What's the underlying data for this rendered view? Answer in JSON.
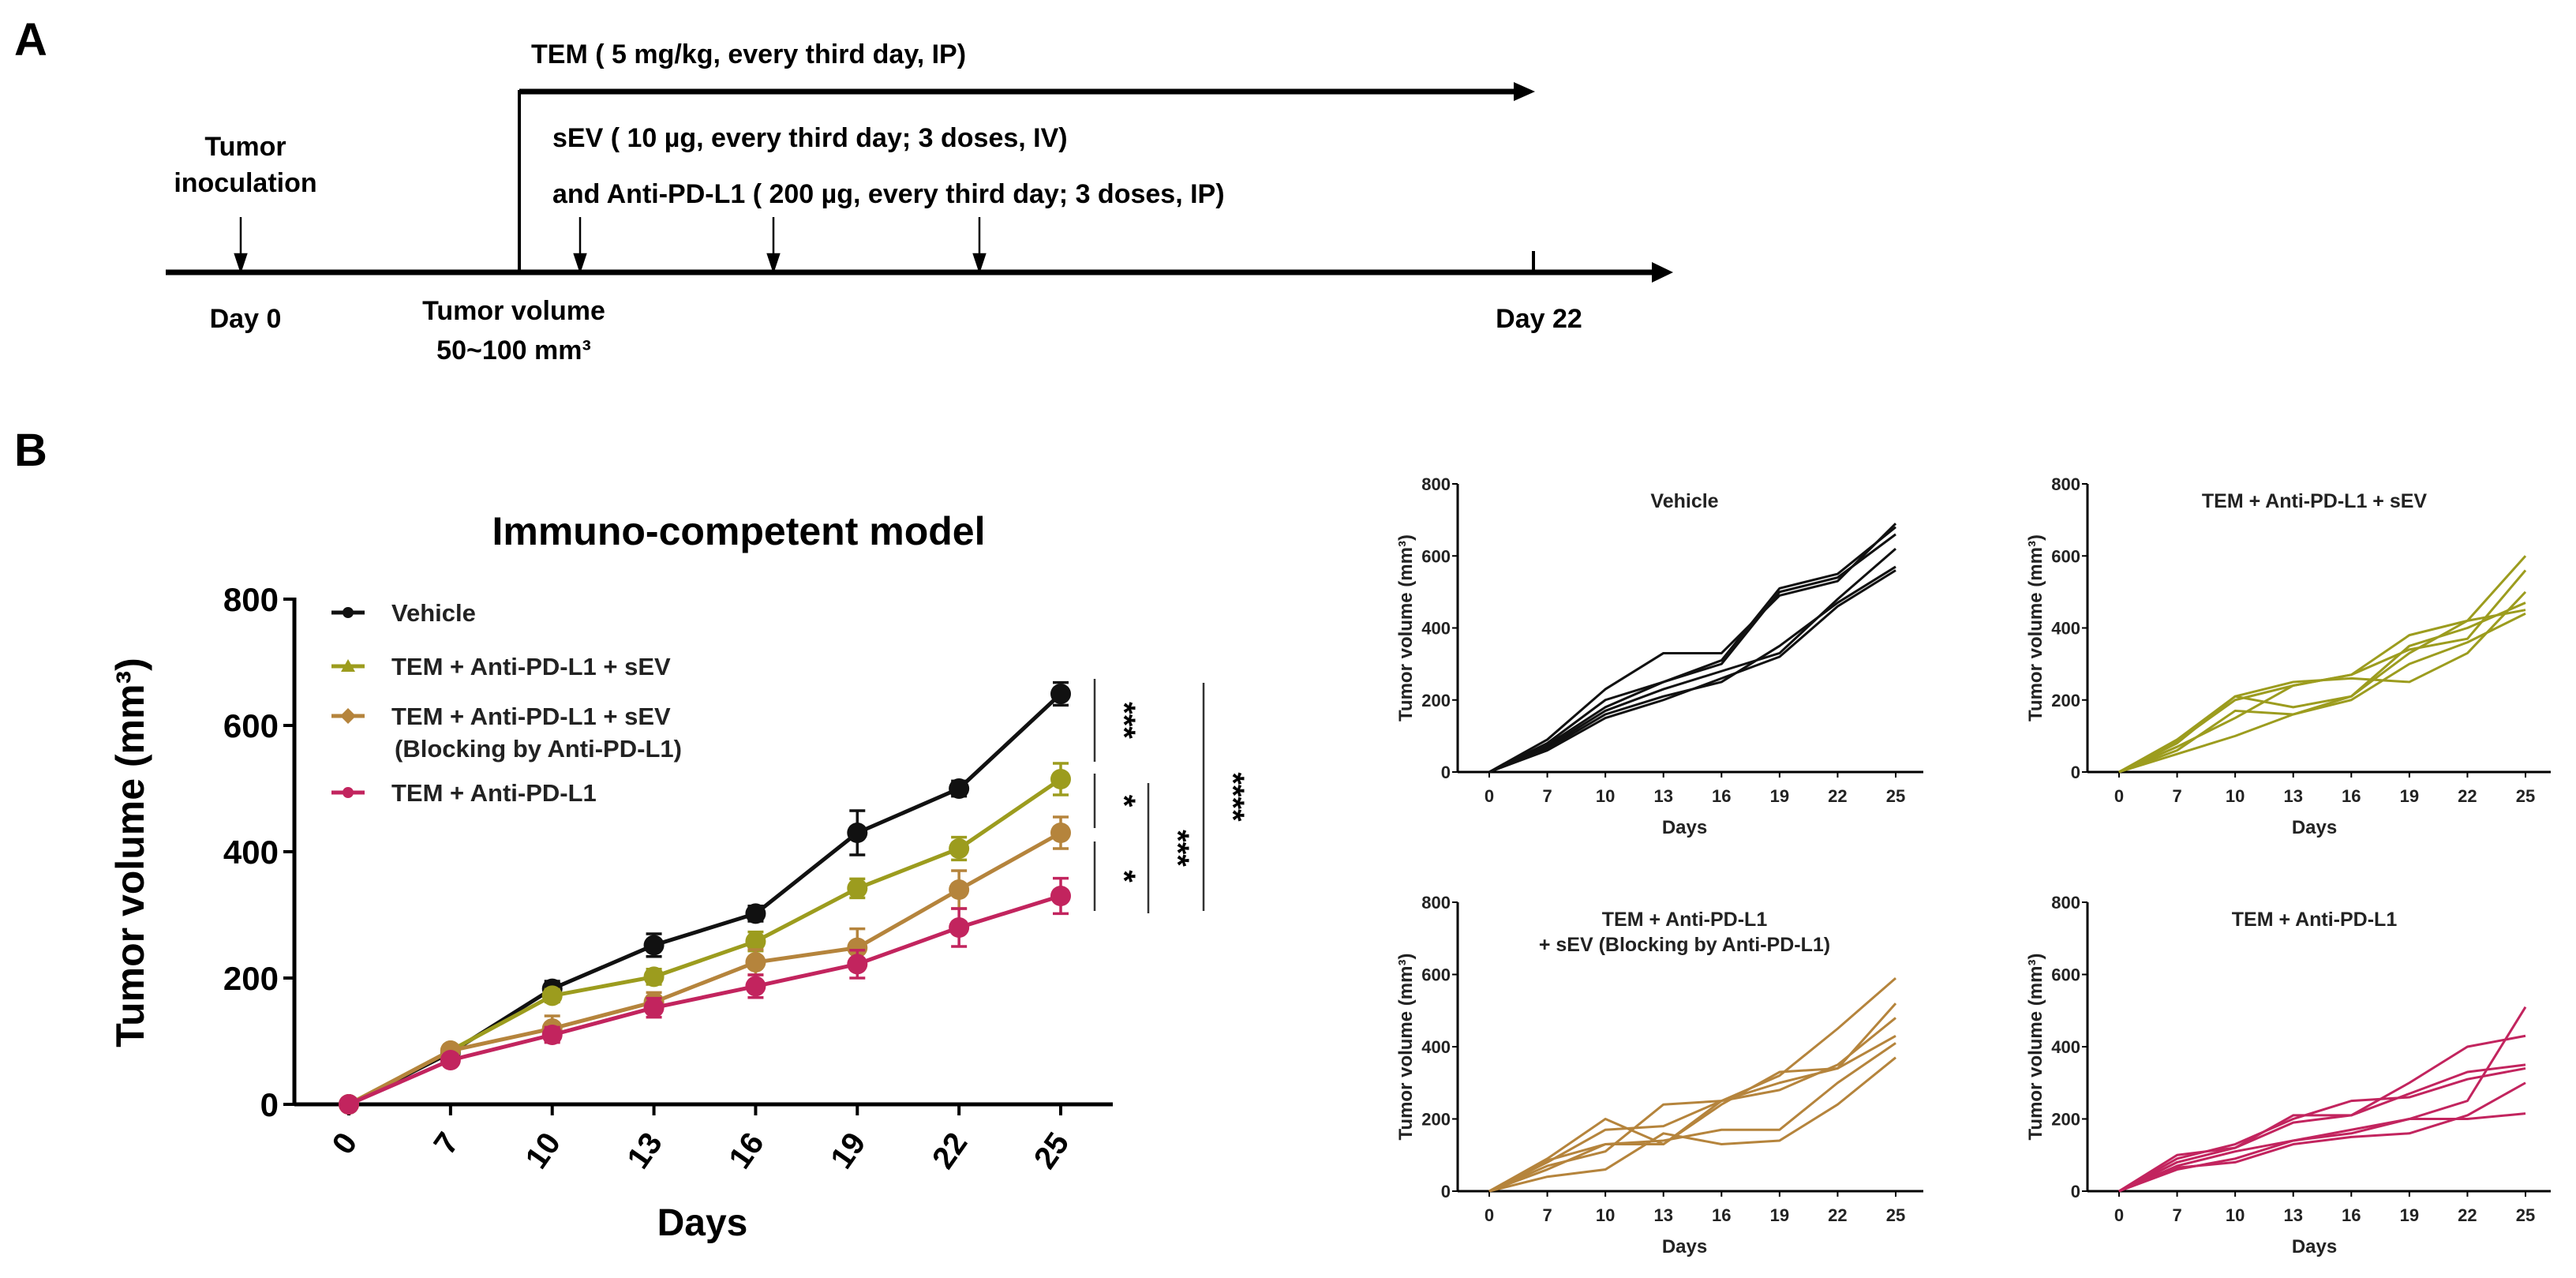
{
  "panel_a": {
    "label": "A",
    "tem_text": "TEM ( 5 mg/kg, every third day, IP)",
    "sev_text": "sEV ( 10 µg, every third day; 3 doses, IV)",
    "anti_text": "and Anti-PD-L1 ( 200 µg, every third day; 3 doses, IP)",
    "inoculation_line1": "Tumor",
    "inoculation_line2": "inoculation",
    "day0": "Day 0",
    "volume_line1": "Tumor volume",
    "volume_line2": "50~100 mm³",
    "day22": "Day 22"
  },
  "panel_b": {
    "label": "B"
  },
  "colors": {
    "vehicle": "#111111",
    "sev": "#9c9c1e",
    "blocking": "#b5843c",
    "anti": "#c2245e"
  },
  "chart_data": [
    {
      "type": "line",
      "title": "Immuno-competent model",
      "xlabel": "Days",
      "ylabel": "Tumor volume (mm³)",
      "categories": [
        "0",
        "7",
        "10",
        "13",
        "16",
        "19",
        "22",
        "25"
      ],
      "ylim": [
        0,
        800
      ],
      "yticks": [
        "0",
        "200",
        "400",
        "600",
        "800"
      ],
      "legend_position": "top-left",
      "series": [
        {
          "name": "Vehicle",
          "color_key": "vehicle",
          "marker": "circle",
          "values": [
            0,
            82,
            183,
            252,
            302,
            430,
            500,
            650
          ],
          "errors": [
            0,
            6,
            12,
            18,
            12,
            35,
            12,
            18
          ]
        },
        {
          "name": "TEM + Anti-PD-L1 + sEV",
          "color_key": "sev",
          "marker": "triangle",
          "values": [
            0,
            85,
            172,
            202,
            258,
            342,
            405,
            515
          ],
          "errors": [
            0,
            5,
            10,
            12,
            15,
            15,
            18,
            25
          ]
        },
        {
          "name": "TEM + Anti-PD-L1 + sEV",
          "name_line2": "(Blocking by Anti-PD-L1)",
          "color_key": "blocking",
          "marker": "diamond",
          "values": [
            0,
            85,
            120,
            162,
            225,
            248,
            340,
            430
          ],
          "errors": [
            0,
            5,
            20,
            15,
            20,
            30,
            30,
            25
          ]
        },
        {
          "name": "TEM + Anti-PD-L1",
          "color_key": "anti",
          "marker": "circle",
          "values": [
            0,
            70,
            110,
            153,
            187,
            222,
            280,
            330
          ],
          "errors": [
            0,
            5,
            12,
            15,
            18,
            22,
            30,
            28
          ]
        }
      ],
      "significance": [
        "***",
        "*",
        "*",
        "***",
        "****"
      ]
    },
    {
      "type": "line",
      "title": "Vehicle",
      "color_key": "vehicle",
      "xlabel": "Days",
      "ylabel": "Tumor volume (mm³)",
      "categories": [
        "0",
        "7",
        "10",
        "13",
        "16",
        "19",
        "22",
        "25"
      ],
      "yticks": [
        "0",
        "200",
        "400",
        "600",
        "800"
      ],
      "ylim": [
        0,
        800
      ],
      "series": [
        [
          0,
          90,
          230,
          330,
          330,
          490,
          530,
          690
        ],
        [
          0,
          80,
          200,
          250,
          310,
          510,
          550,
          680
        ],
        [
          0,
          75,
          180,
          250,
          300,
          500,
          540,
          660
        ],
        [
          0,
          70,
          170,
          230,
          280,
          330,
          480,
          620
        ],
        [
          0,
          65,
          160,
          210,
          250,
          350,
          470,
          570
        ],
        [
          0,
          60,
          150,
          200,
          260,
          320,
          460,
          560
        ]
      ]
    },
    {
      "type": "line",
      "title": "TEM + Anti-PD-L1 + sEV",
      "color_key": "sev",
      "xlabel": "Days",
      "ylabel": "Tumor volume (mm³)",
      "categories": [
        "0",
        "7",
        "10",
        "13",
        "16",
        "19",
        "22",
        "25"
      ],
      "yticks": [
        "0",
        "200",
        "400",
        "600",
        "800"
      ],
      "ylim": [
        0,
        800
      ],
      "series": [
        [
          0,
          90,
          210,
          180,
          210,
          330,
          420,
          600
        ],
        [
          0,
          85,
          200,
          240,
          270,
          340,
          370,
          560
        ],
        [
          0,
          80,
          210,
          250,
          260,
          250,
          330,
          500
        ],
        [
          0,
          70,
          150,
          240,
          270,
          380,
          420,
          450
        ],
        [
          0,
          60,
          170,
          160,
          200,
          300,
          360,
          440
        ],
        [
          0,
          50,
          100,
          160,
          210,
          350,
          400,
          470
        ]
      ]
    },
    {
      "type": "line",
      "title": "TEM + Anti-PD-L1",
      "title_line2": "+ sEV (Blocking by Anti-PD-L1)",
      "color_key": "blocking",
      "xlabel": "Days",
      "ylabel": "Tumor volume (mm³)",
      "categories": [
        "0",
        "7",
        "10",
        "13",
        "16",
        "19",
        "22",
        "25"
      ],
      "yticks": [
        "0",
        "200",
        "400",
        "600",
        "800"
      ],
      "ylim": [
        0,
        800
      ],
      "series": [
        [
          0,
          90,
          200,
          130,
          250,
          320,
          450,
          590
        ],
        [
          0,
          80,
          170,
          180,
          250,
          300,
          340,
          520
        ],
        [
          0,
          70,
          110,
          240,
          250,
          280,
          350,
          480
        ],
        [
          0,
          85,
          130,
          130,
          240,
          330,
          340,
          430
        ],
        [
          0,
          60,
          130,
          140,
          170,
          170,
          300,
          410
        ],
        [
          0,
          40,
          60,
          160,
          130,
          140,
          240,
          370
        ]
      ]
    },
    {
      "type": "line",
      "title": "TEM + Anti-PD-L1",
      "color_key": "anti",
      "xlabel": "Days",
      "ylabel": "Tumor volume (mm³)",
      "categories": [
        "0",
        "7",
        "10",
        "13",
        "16",
        "19",
        "22",
        "25"
      ],
      "yticks": [
        "0",
        "200",
        "400",
        "600",
        "800"
      ],
      "ylim": [
        0,
        800
      ],
      "series": [
        [
          0,
          100,
          120,
          210,
          210,
          300,
          400,
          430
        ],
        [
          0,
          80,
          120,
          190,
          210,
          270,
          330,
          350
        ],
        [
          0,
          90,
          130,
          200,
          250,
          260,
          310,
          340
        ],
        [
          0,
          60,
          90,
          140,
          170,
          200,
          250,
          510
        ],
        [
          0,
          70,
          110,
          140,
          160,
          200,
          200,
          215
        ],
        [
          0,
          65,
          80,
          130,
          150,
          160,
          210,
          300
        ]
      ]
    }
  ]
}
